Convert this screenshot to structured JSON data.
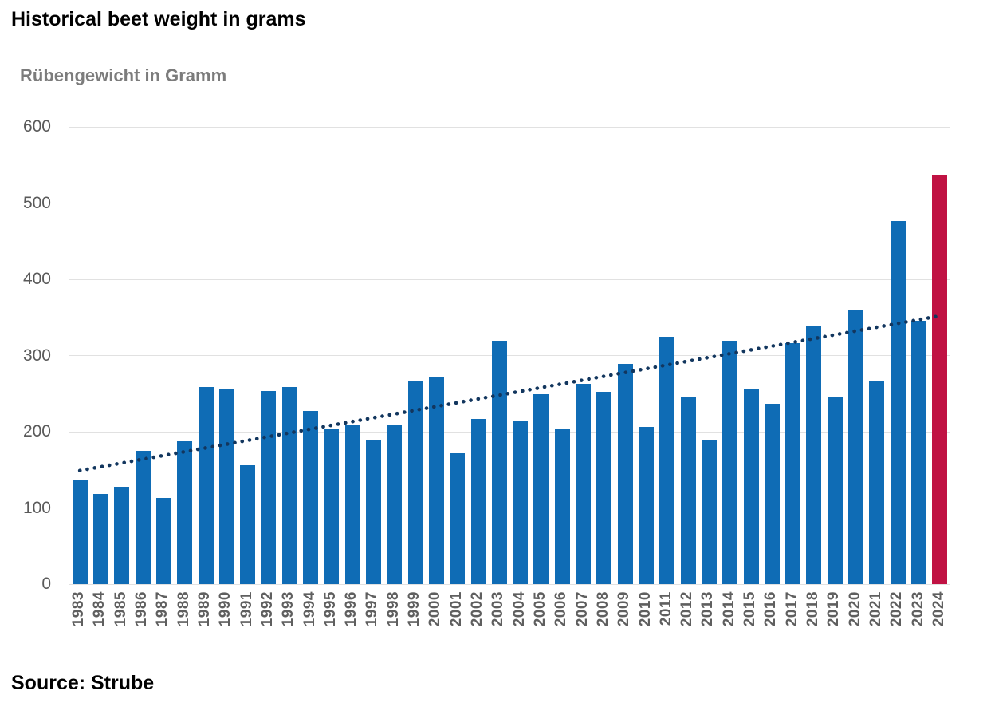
{
  "header": {
    "title": "Historical beet weight in grams"
  },
  "footer": {
    "source": "Source: Strube"
  },
  "chart_data": {
    "type": "bar",
    "title": "Rübengewicht in Gramm",
    "xlabel": "",
    "ylabel": "Rübengewicht in Gramm",
    "ylim": [
      0,
      600
    ],
    "yticks": [
      0,
      100,
      200,
      300,
      400,
      500,
      600
    ],
    "grid": "horizontal",
    "legend": "none",
    "categories": [
      "1983",
      "1984",
      "1985",
      "1986",
      "1987",
      "1988",
      "1989",
      "1990",
      "1991",
      "1992",
      "1993",
      "1994",
      "1995",
      "1996",
      "1997",
      "1998",
      "1999",
      "2000",
      "2001",
      "2002",
      "2003",
      "2004",
      "2005",
      "2006",
      "2007",
      "2008",
      "2009",
      "2010",
      "2011",
      "2012",
      "2013",
      "2014",
      "2015",
      "2016",
      "2017",
      "2018",
      "2019",
      "2020",
      "2021",
      "2022",
      "2023",
      "2024"
    ],
    "values": [
      136,
      118,
      128,
      175,
      113,
      187,
      259,
      256,
      156,
      253,
      259,
      227,
      204,
      208,
      190,
      208,
      266,
      271,
      172,
      217,
      319,
      214,
      249,
      204,
      263,
      252,
      289,
      206,
      325,
      246,
      190,
      319,
      256,
      237,
      316,
      338,
      245,
      360,
      267,
      476,
      346,
      537
    ],
    "highlight_year": "2024",
    "bar_color": "#0f6cb5",
    "highlight_color": "#c01243",
    "gridline_color": "#e1e1e1",
    "trendline": {
      "style": "dotted",
      "color": "#12365e",
      "start_year": "1983",
      "end_year": "2024",
      "start_value": 149,
      "end_value": 352
    }
  }
}
